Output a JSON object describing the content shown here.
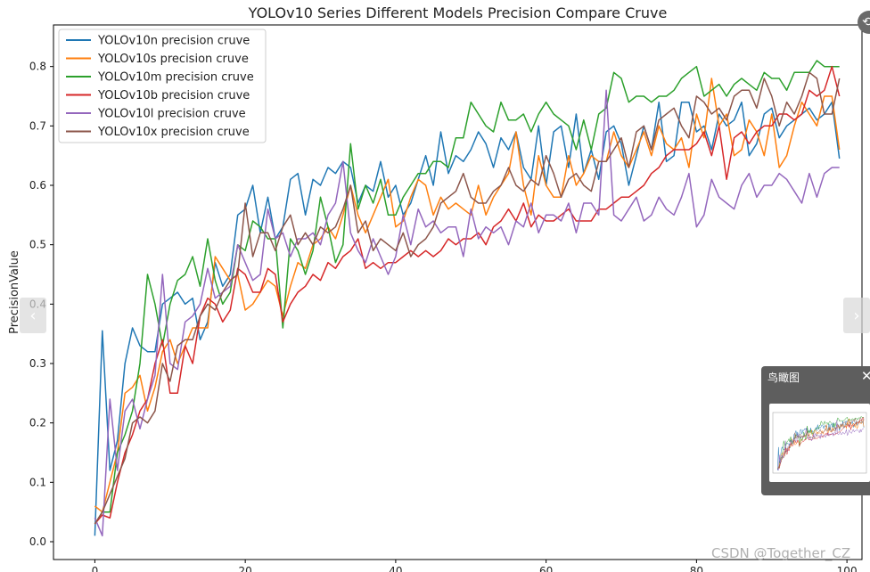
{
  "chart_data": {
    "type": "line",
    "title": "YOLOv10 Series Different Models Precision Compare Cruve",
    "xlabel": "",
    "ylabel": "PrecisionValue",
    "xlim": [
      -5.5,
      102
    ],
    "ylim": [
      -0.03,
      0.87
    ],
    "xticks": [
      0,
      20,
      40,
      60,
      80,
      100
    ],
    "yticks": [
      0.0,
      0.1,
      0.2,
      0.3,
      0.4,
      0.5,
      0.6,
      0.7,
      0.8
    ],
    "legend_position": "upper-left",
    "grid": false,
    "x": [
      0,
      1,
      2,
      3,
      4,
      5,
      6,
      7,
      8,
      9,
      10,
      11,
      12,
      13,
      14,
      15,
      16,
      17,
      18,
      19,
      20,
      21,
      22,
      23,
      24,
      25,
      26,
      27,
      28,
      29,
      30,
      31,
      32,
      33,
      34,
      35,
      36,
      37,
      38,
      39,
      40,
      41,
      42,
      43,
      44,
      45,
      46,
      47,
      48,
      49,
      50,
      51,
      52,
      53,
      54,
      55,
      56,
      57,
      58,
      59,
      60,
      61,
      62,
      63,
      64,
      65,
      66,
      67,
      68,
      69,
      70,
      71,
      72,
      73,
      74,
      75,
      76,
      77,
      78,
      79,
      80,
      81,
      82,
      83,
      84,
      85,
      86,
      87,
      88,
      89,
      90,
      91,
      92,
      93,
      94,
      95,
      96,
      97,
      98,
      99
    ],
    "series": [
      {
        "name": "YOLOv10n precision cruve",
        "color": "#1f77b4",
        "values": [
          0.01,
          0.355,
          0.12,
          0.17,
          0.3,
          0.36,
          0.33,
          0.32,
          0.32,
          0.4,
          0.41,
          0.42,
          0.4,
          0.41,
          0.34,
          0.37,
          0.47,
          0.43,
          0.45,
          0.55,
          0.56,
          0.6,
          0.52,
          0.58,
          0.51,
          0.53,
          0.61,
          0.62,
          0.55,
          0.61,
          0.6,
          0.63,
          0.62,
          0.64,
          0.63,
          0.57,
          0.6,
          0.59,
          0.64,
          0.58,
          0.6,
          0.55,
          0.57,
          0.61,
          0.65,
          0.6,
          0.69,
          0.62,
          0.65,
          0.64,
          0.66,
          0.69,
          0.67,
          0.63,
          0.68,
          0.66,
          0.69,
          0.63,
          0.61,
          0.7,
          0.6,
          0.69,
          0.7,
          0.63,
          0.72,
          0.62,
          0.66,
          0.61,
          0.69,
          0.7,
          0.67,
          0.6,
          0.65,
          0.7,
          0.66,
          0.74,
          0.64,
          0.65,
          0.74,
          0.74,
          0.69,
          0.7,
          0.66,
          0.72,
          0.7,
          0.71,
          0.74,
          0.65,
          0.67,
          0.72,
          0.73,
          0.68,
          0.7,
          0.71,
          0.72,
          0.73,
          0.71,
          0.72,
          0.74,
          0.645
        ]
      },
      {
        "name": "YOLOv10s precision cruve",
        "color": "#ff7f0e",
        "values": [
          0.06,
          0.05,
          0.1,
          0.15,
          0.25,
          0.26,
          0.28,
          0.22,
          0.26,
          0.32,
          0.34,
          0.3,
          0.33,
          0.36,
          0.36,
          0.36,
          0.48,
          0.46,
          0.44,
          0.45,
          0.39,
          0.4,
          0.42,
          0.44,
          0.43,
          0.38,
          0.43,
          0.47,
          0.46,
          0.5,
          0.51,
          0.53,
          0.51,
          0.55,
          0.6,
          0.55,
          0.52,
          0.55,
          0.58,
          0.61,
          0.53,
          0.54,
          0.58,
          0.61,
          0.6,
          0.55,
          0.58,
          0.56,
          0.57,
          0.56,
          0.55,
          0.6,
          0.55,
          0.58,
          0.6,
          0.62,
          0.69,
          0.6,
          0.55,
          0.65,
          0.6,
          0.58,
          0.58,
          0.65,
          0.6,
          0.62,
          0.65,
          0.64,
          0.64,
          0.69,
          0.65,
          0.63,
          0.66,
          0.69,
          0.65,
          0.7,
          0.67,
          0.66,
          0.68,
          0.63,
          0.72,
          0.68,
          0.78,
          0.7,
          0.72,
          0.65,
          0.66,
          0.71,
          0.69,
          0.65,
          0.72,
          0.63,
          0.65,
          0.7,
          0.74,
          0.72,
          0.7,
          0.75,
          0.75,
          0.66
        ]
      },
      {
        "name": "YOLOv10m precision cruve",
        "color": "#2ca02c",
        "values": [
          0.03,
          0.05,
          0.05,
          0.15,
          0.18,
          0.22,
          0.3,
          0.45,
          0.4,
          0.33,
          0.4,
          0.44,
          0.45,
          0.48,
          0.43,
          0.51,
          0.44,
          0.4,
          0.42,
          0.5,
          0.49,
          0.54,
          0.53,
          0.51,
          0.51,
          0.36,
          0.51,
          0.49,
          0.45,
          0.49,
          0.58,
          0.53,
          0.47,
          0.5,
          0.67,
          0.56,
          0.6,
          0.57,
          0.61,
          0.55,
          0.55,
          0.58,
          0.6,
          0.62,
          0.62,
          0.64,
          0.64,
          0.63,
          0.68,
          0.68,
          0.74,
          0.72,
          0.7,
          0.69,
          0.74,
          0.71,
          0.71,
          0.72,
          0.69,
          0.72,
          0.74,
          0.72,
          0.71,
          0.7,
          0.66,
          0.71,
          0.66,
          0.72,
          0.73,
          0.79,
          0.78,
          0.74,
          0.75,
          0.75,
          0.74,
          0.75,
          0.75,
          0.76,
          0.78,
          0.79,
          0.8,
          0.75,
          0.76,
          0.77,
          0.75,
          0.77,
          0.78,
          0.77,
          0.76,
          0.79,
          0.78,
          0.78,
          0.76,
          0.79,
          0.79,
          0.79,
          0.81,
          0.8,
          0.8,
          0.8
        ]
      },
      {
        "name": "YOLOv10b precision cruve",
        "color": "#d62728",
        "values": [
          0.03,
          0.045,
          0.04,
          0.1,
          0.15,
          0.18,
          0.22,
          0.24,
          0.3,
          0.34,
          0.25,
          0.25,
          0.33,
          0.3,
          0.38,
          0.41,
          0.4,
          0.37,
          0.39,
          0.46,
          0.45,
          0.42,
          0.42,
          0.46,
          0.45,
          0.37,
          0.4,
          0.42,
          0.43,
          0.45,
          0.44,
          0.47,
          0.46,
          0.48,
          0.49,
          0.51,
          0.46,
          0.47,
          0.46,
          0.47,
          0.47,
          0.48,
          0.49,
          0.48,
          0.49,
          0.48,
          0.49,
          0.51,
          0.5,
          0.51,
          0.51,
          0.52,
          0.5,
          0.53,
          0.54,
          0.56,
          0.54,
          0.57,
          0.53,
          0.55,
          0.54,
          0.54,
          0.55,
          0.56,
          0.54,
          0.54,
          0.54,
          0.56,
          0.56,
          0.57,
          0.58,
          0.58,
          0.59,
          0.6,
          0.62,
          0.63,
          0.65,
          0.66,
          0.66,
          0.66,
          0.67,
          0.69,
          0.65,
          0.7,
          0.61,
          0.68,
          0.69,
          0.67,
          0.69,
          0.7,
          0.7,
          0.72,
          0.72,
          0.71,
          0.72,
          0.76,
          0.75,
          0.76,
          0.8,
          0.75
        ]
      },
      {
        "name": "YOLOv10l precision cruve",
        "color": "#9467bd",
        "values": [
          0.04,
          0.01,
          0.24,
          0.12,
          0.22,
          0.24,
          0.19,
          0.24,
          0.28,
          0.45,
          0.3,
          0.29,
          0.37,
          0.38,
          0.4,
          0.46,
          0.41,
          0.42,
          0.43,
          0.5,
          0.47,
          0.44,
          0.45,
          0.56,
          0.51,
          0.52,
          0.48,
          0.51,
          0.51,
          0.52,
          0.5,
          0.55,
          0.57,
          0.64,
          0.52,
          0.49,
          0.47,
          0.51,
          0.48,
          0.45,
          0.48,
          0.55,
          0.5,
          0.56,
          0.53,
          0.54,
          0.52,
          0.53,
          0.53,
          0.48,
          0.56,
          0.51,
          0.53,
          0.52,
          0.53,
          0.5,
          0.54,
          0.53,
          0.57,
          0.52,
          0.55,
          0.55,
          0.54,
          0.57,
          0.52,
          0.57,
          0.57,
          0.55,
          0.76,
          0.55,
          0.54,
          0.56,
          0.58,
          0.54,
          0.55,
          0.58,
          0.56,
          0.55,
          0.58,
          0.62,
          0.53,
          0.55,
          0.61,
          0.58,
          0.57,
          0.56,
          0.6,
          0.62,
          0.58,
          0.6,
          0.6,
          0.62,
          0.61,
          0.59,
          0.57,
          0.62,
          0.58,
          0.62,
          0.63,
          0.63
        ]
      },
      {
        "name": "YOLOv10x precision cruve",
        "color": "#8c564b",
        "values": [
          0.03,
          0.05,
          0.08,
          0.11,
          0.14,
          0.2,
          0.21,
          0.2,
          0.22,
          0.3,
          0.27,
          0.33,
          0.34,
          0.34,
          0.38,
          0.4,
          0.39,
          0.42,
          0.44,
          0.45,
          0.57,
          0.48,
          0.52,
          0.52,
          0.49,
          0.53,
          0.55,
          0.5,
          0.52,
          0.5,
          0.53,
          0.52,
          0.53,
          0.56,
          0.6,
          0.52,
          0.54,
          0.49,
          0.51,
          0.5,
          0.49,
          0.52,
          0.48,
          0.5,
          0.51,
          0.53,
          0.57,
          0.58,
          0.59,
          0.62,
          0.58,
          0.57,
          0.57,
          0.59,
          0.6,
          0.63,
          0.6,
          0.59,
          0.61,
          0.6,
          0.65,
          0.62,
          0.58,
          0.61,
          0.62,
          0.6,
          0.59,
          0.64,
          0.64,
          0.66,
          0.68,
          0.63,
          0.69,
          0.7,
          0.66,
          0.71,
          0.72,
          0.73,
          0.7,
          0.68,
          0.75,
          0.74,
          0.72,
          0.73,
          0.71,
          0.75,
          0.76,
          0.76,
          0.73,
          0.78,
          0.75,
          0.7,
          0.74,
          0.72,
          0.75,
          0.79,
          0.78,
          0.72,
          0.72,
          0.78
        ]
      }
    ]
  },
  "overlay": {
    "nav_prev_label": "‹",
    "nav_next_label": "›",
    "close_label": "⟲",
    "minimap_title": "鸟瞰图",
    "minimap_close_label": "✕",
    "watermark": "CSDN @Together_CZ"
  }
}
